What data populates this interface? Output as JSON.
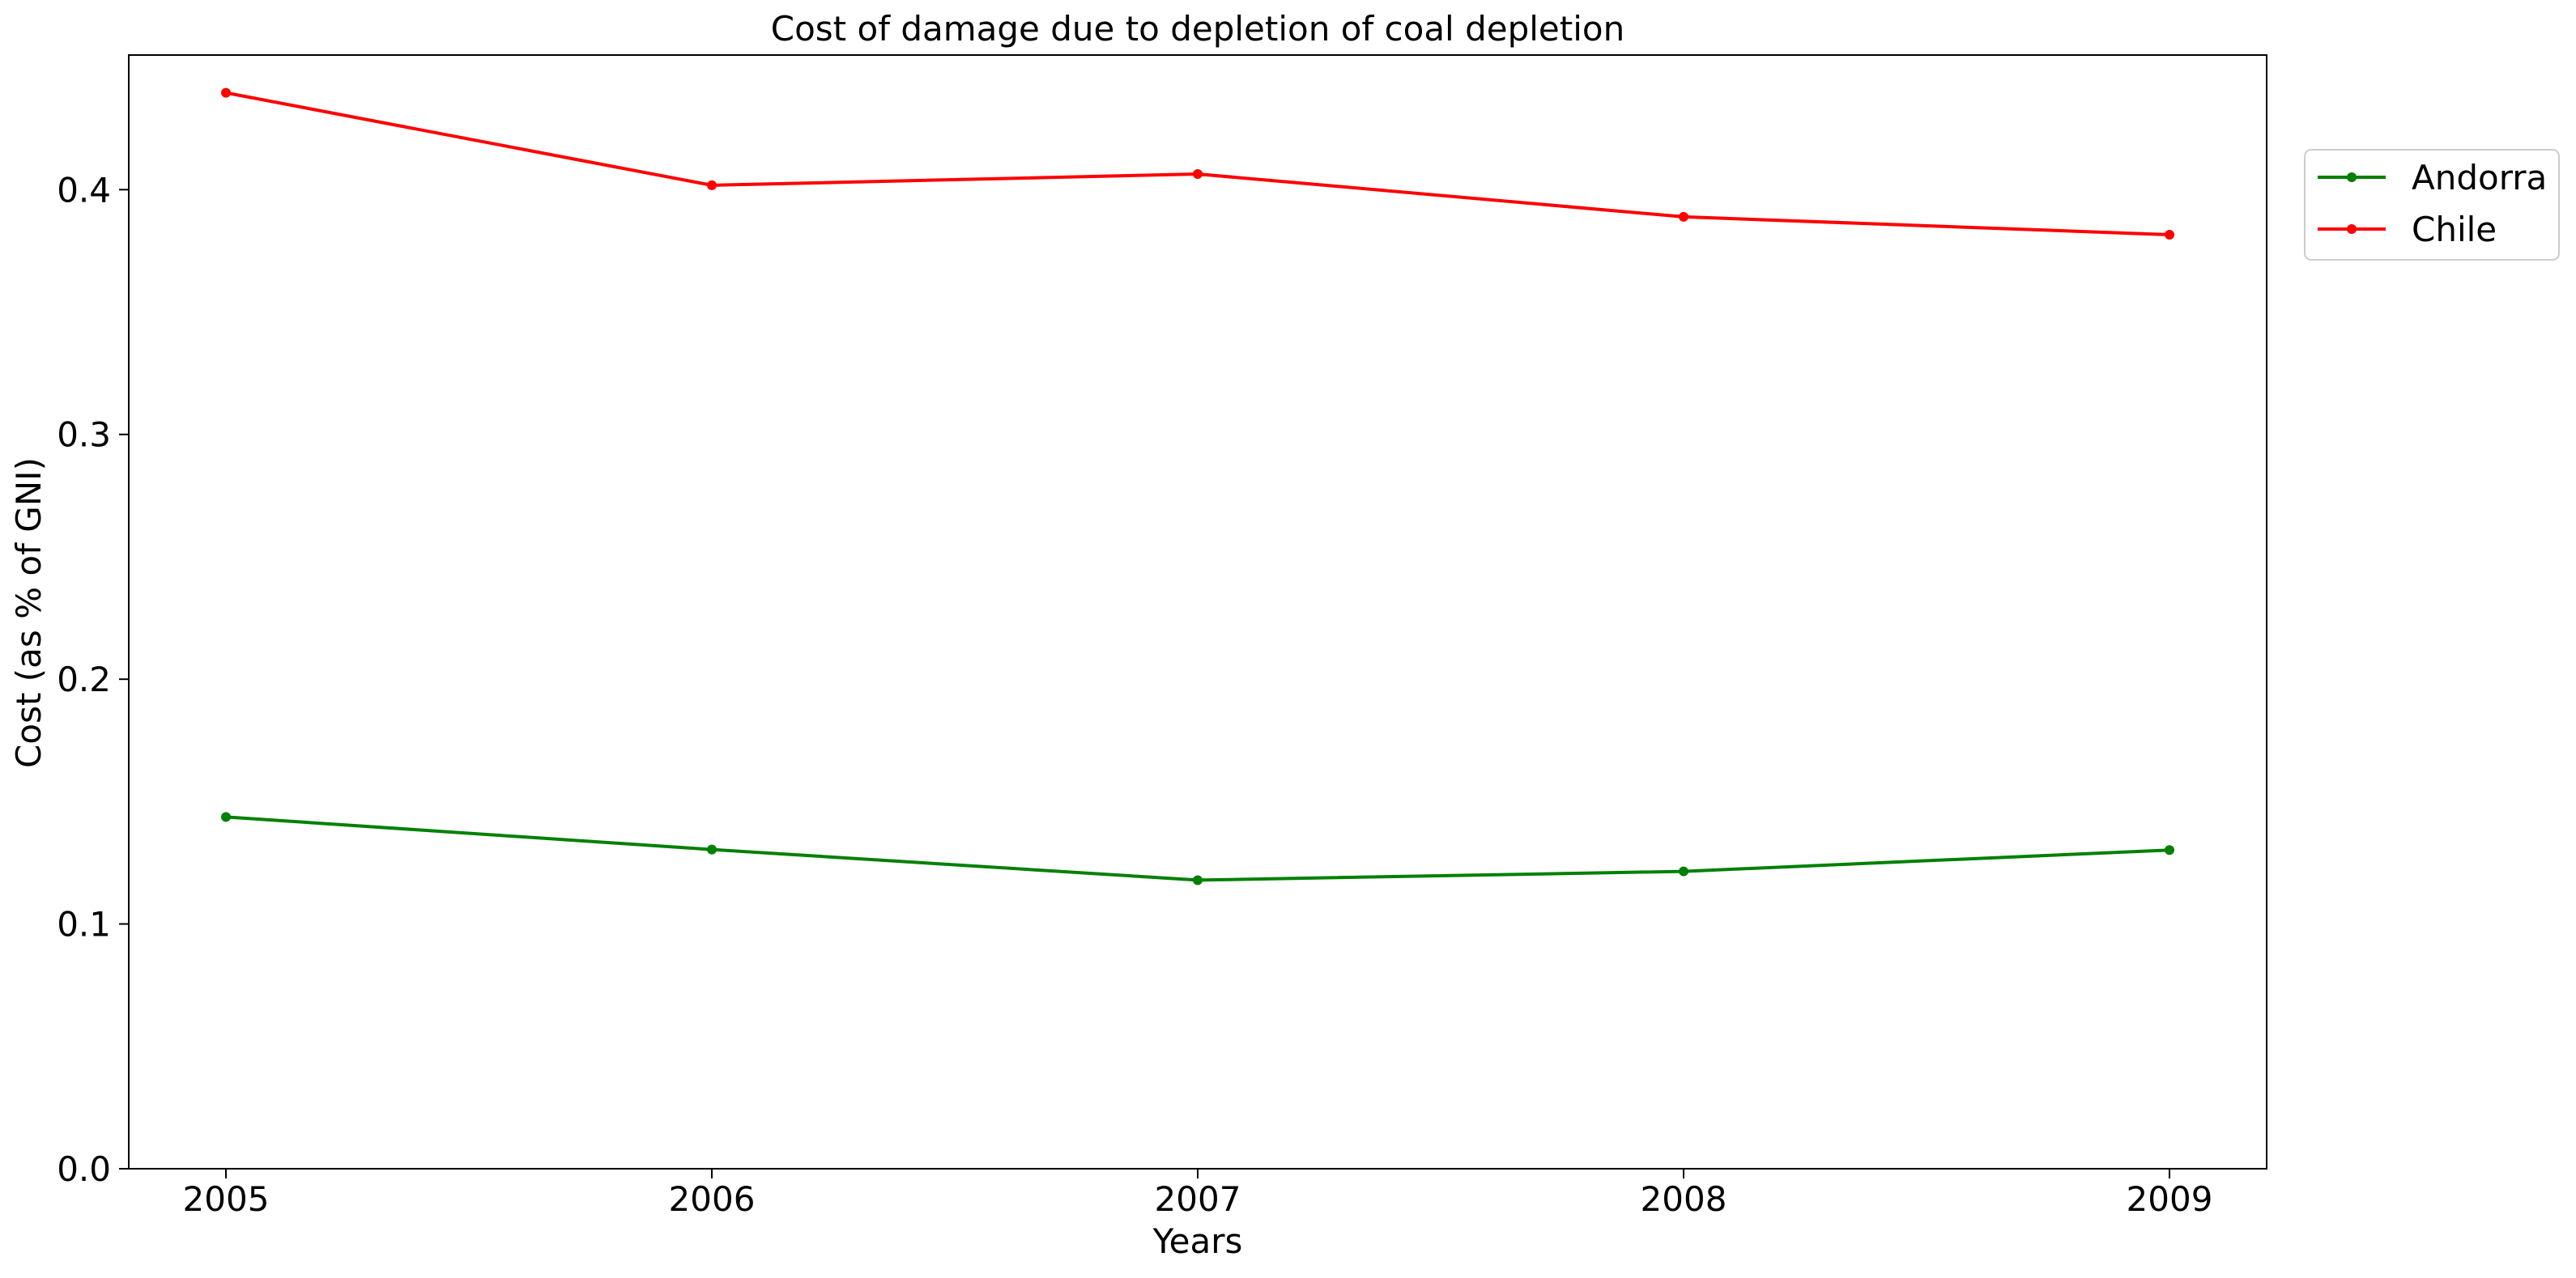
{
  "chart_data": {
    "type": "line",
    "title": "Cost of damage due to depletion of coal depletion",
    "xlabel": "Years",
    "ylabel": "Cost (as % of GNI)",
    "x": [
      "2005",
      "2006",
      "2007",
      "2008",
      "2009"
    ],
    "xlim": [
      2004.8,
      2009.2
    ],
    "ylim": [
      0.0,
      0.455
    ],
    "yticks": [
      0.0,
      0.1,
      0.2,
      0.3,
      0.4
    ],
    "ytick_labels": [
      "0.0",
      "0.1",
      "0.2",
      "0.3",
      "0.4"
    ],
    "grid": false,
    "legend_position": "upper right, outside the plot area",
    "series": [
      {
        "name": "Andorra",
        "color": "#008000",
        "marker": "circle",
        "values": [
          0.1437,
          0.1304,
          0.1179,
          0.1215,
          0.1302
        ]
      },
      {
        "name": "Chile",
        "color": "#ff0000",
        "marker": "circle",
        "values": [
          0.4396,
          0.4018,
          0.4064,
          0.3889,
          0.3816
        ]
      }
    ]
  }
}
